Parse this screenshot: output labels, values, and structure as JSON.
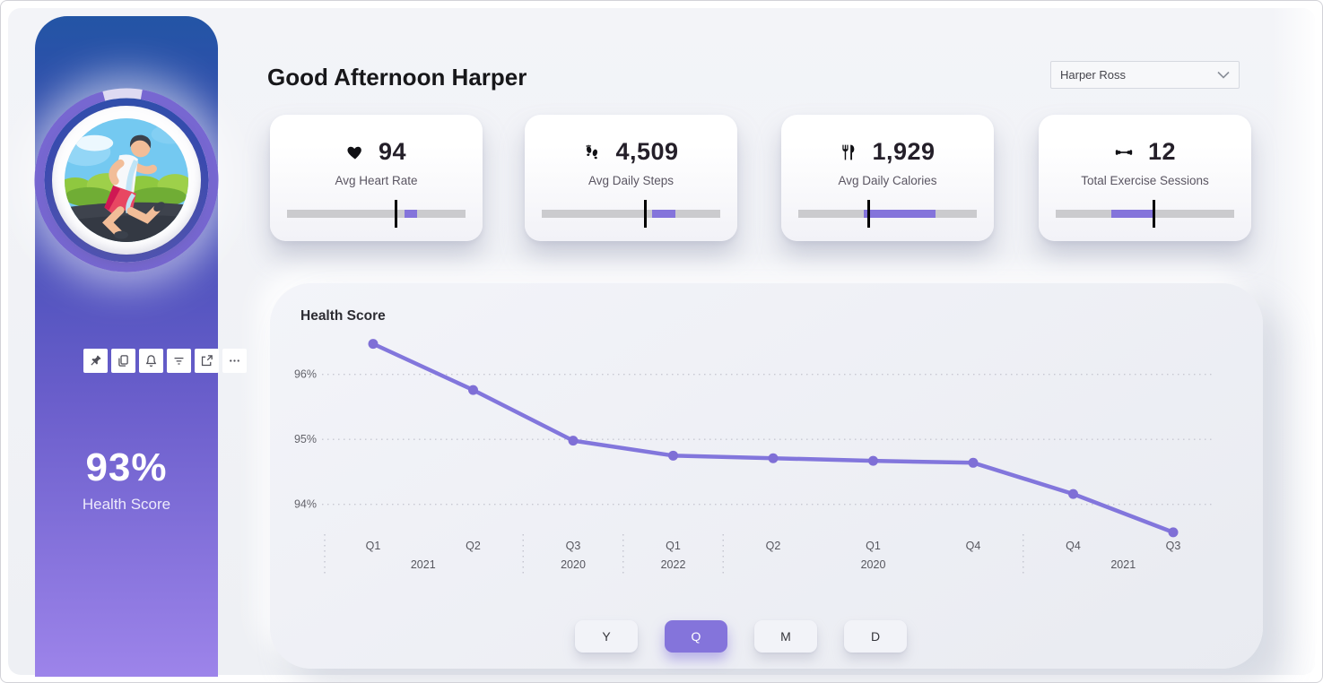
{
  "colors": {
    "accent_purple": "#8474db",
    "line_purple": "#8276dc",
    "gauge_track_gray": "#cbcbce",
    "sidebar_top_blue": "#2355a5",
    "sidebar_bottom_purple": "#9d84ea",
    "page_bg": "#eef0f4"
  },
  "header": {
    "greeting": "Good Afternoon Harper",
    "user_dropdown": {
      "value": "Harper Ross",
      "icon": "chevron-down-icon"
    }
  },
  "sidebar": {
    "score_value": "93%",
    "score_label": "Health Score",
    "health_ring_percent": 93,
    "avatar": "runner-illustration",
    "toolbar_icons": [
      "pin-icon",
      "copy-icon",
      "bell-icon",
      "filter-icon",
      "focus-mode-icon",
      "more-options-icon"
    ]
  },
  "cards": [
    {
      "icon": "heart-icon",
      "value": "94",
      "label": "Avg Heart Rate",
      "gauge": {
        "fill_start": 66,
        "fill_end": 73,
        "target": 61
      }
    },
    {
      "icon": "footprints-icon",
      "value": "4,509",
      "label": "Avg Daily Steps",
      "gauge": {
        "fill_start": 62,
        "fill_end": 75,
        "target": 58
      }
    },
    {
      "icon": "utensils-icon",
      "value": "1,929",
      "label": "Avg Daily Calories",
      "gauge": {
        "fill_start": 36.5,
        "fill_end": 77,
        "target": 39.5
      }
    },
    {
      "icon": "dumbbell-icon",
      "value": "12",
      "label": "Total Exercise Sessions",
      "gauge": {
        "fill_start": 31,
        "fill_end": 54.5,
        "target": 55
      }
    }
  ],
  "chart_data": {
    "type": "line",
    "title": "Health Score",
    "quarter_labels": [
      "Q1",
      "Q2",
      "Q3",
      "Q1",
      "Q2",
      "Q1",
      "Q4",
      "Q4",
      "Q3"
    ],
    "year_groups": [
      {
        "year": "2021",
        "start": 0,
        "end": 1
      },
      {
        "year": "2020",
        "start": 2,
        "end": 2
      },
      {
        "year": "2022",
        "start": 3,
        "end": 3
      },
      {
        "year": "2020",
        "start": 4,
        "end": 6
      },
      {
        "year": "2021",
        "start": 7,
        "end": 8
      }
    ],
    "values": [
      96.47,
      95.76,
      94.98,
      94.75,
      94.71,
      94.67,
      94.64,
      94.16,
      93.57
    ],
    "ytick_labels": [
      "96%",
      "95%",
      "94%"
    ],
    "yticks": [
      96,
      95,
      94
    ],
    "ylim": [
      93.4,
      96.6
    ],
    "grid": "dotted-horizontal",
    "legend": "none",
    "line_color": "#8276dc",
    "marker_color": "#7f6fd6"
  },
  "time_buttons": [
    {
      "label": "Y",
      "active": false
    },
    {
      "label": "Q",
      "active": true
    },
    {
      "label": "M",
      "active": false
    },
    {
      "label": "D",
      "active": false
    }
  ]
}
